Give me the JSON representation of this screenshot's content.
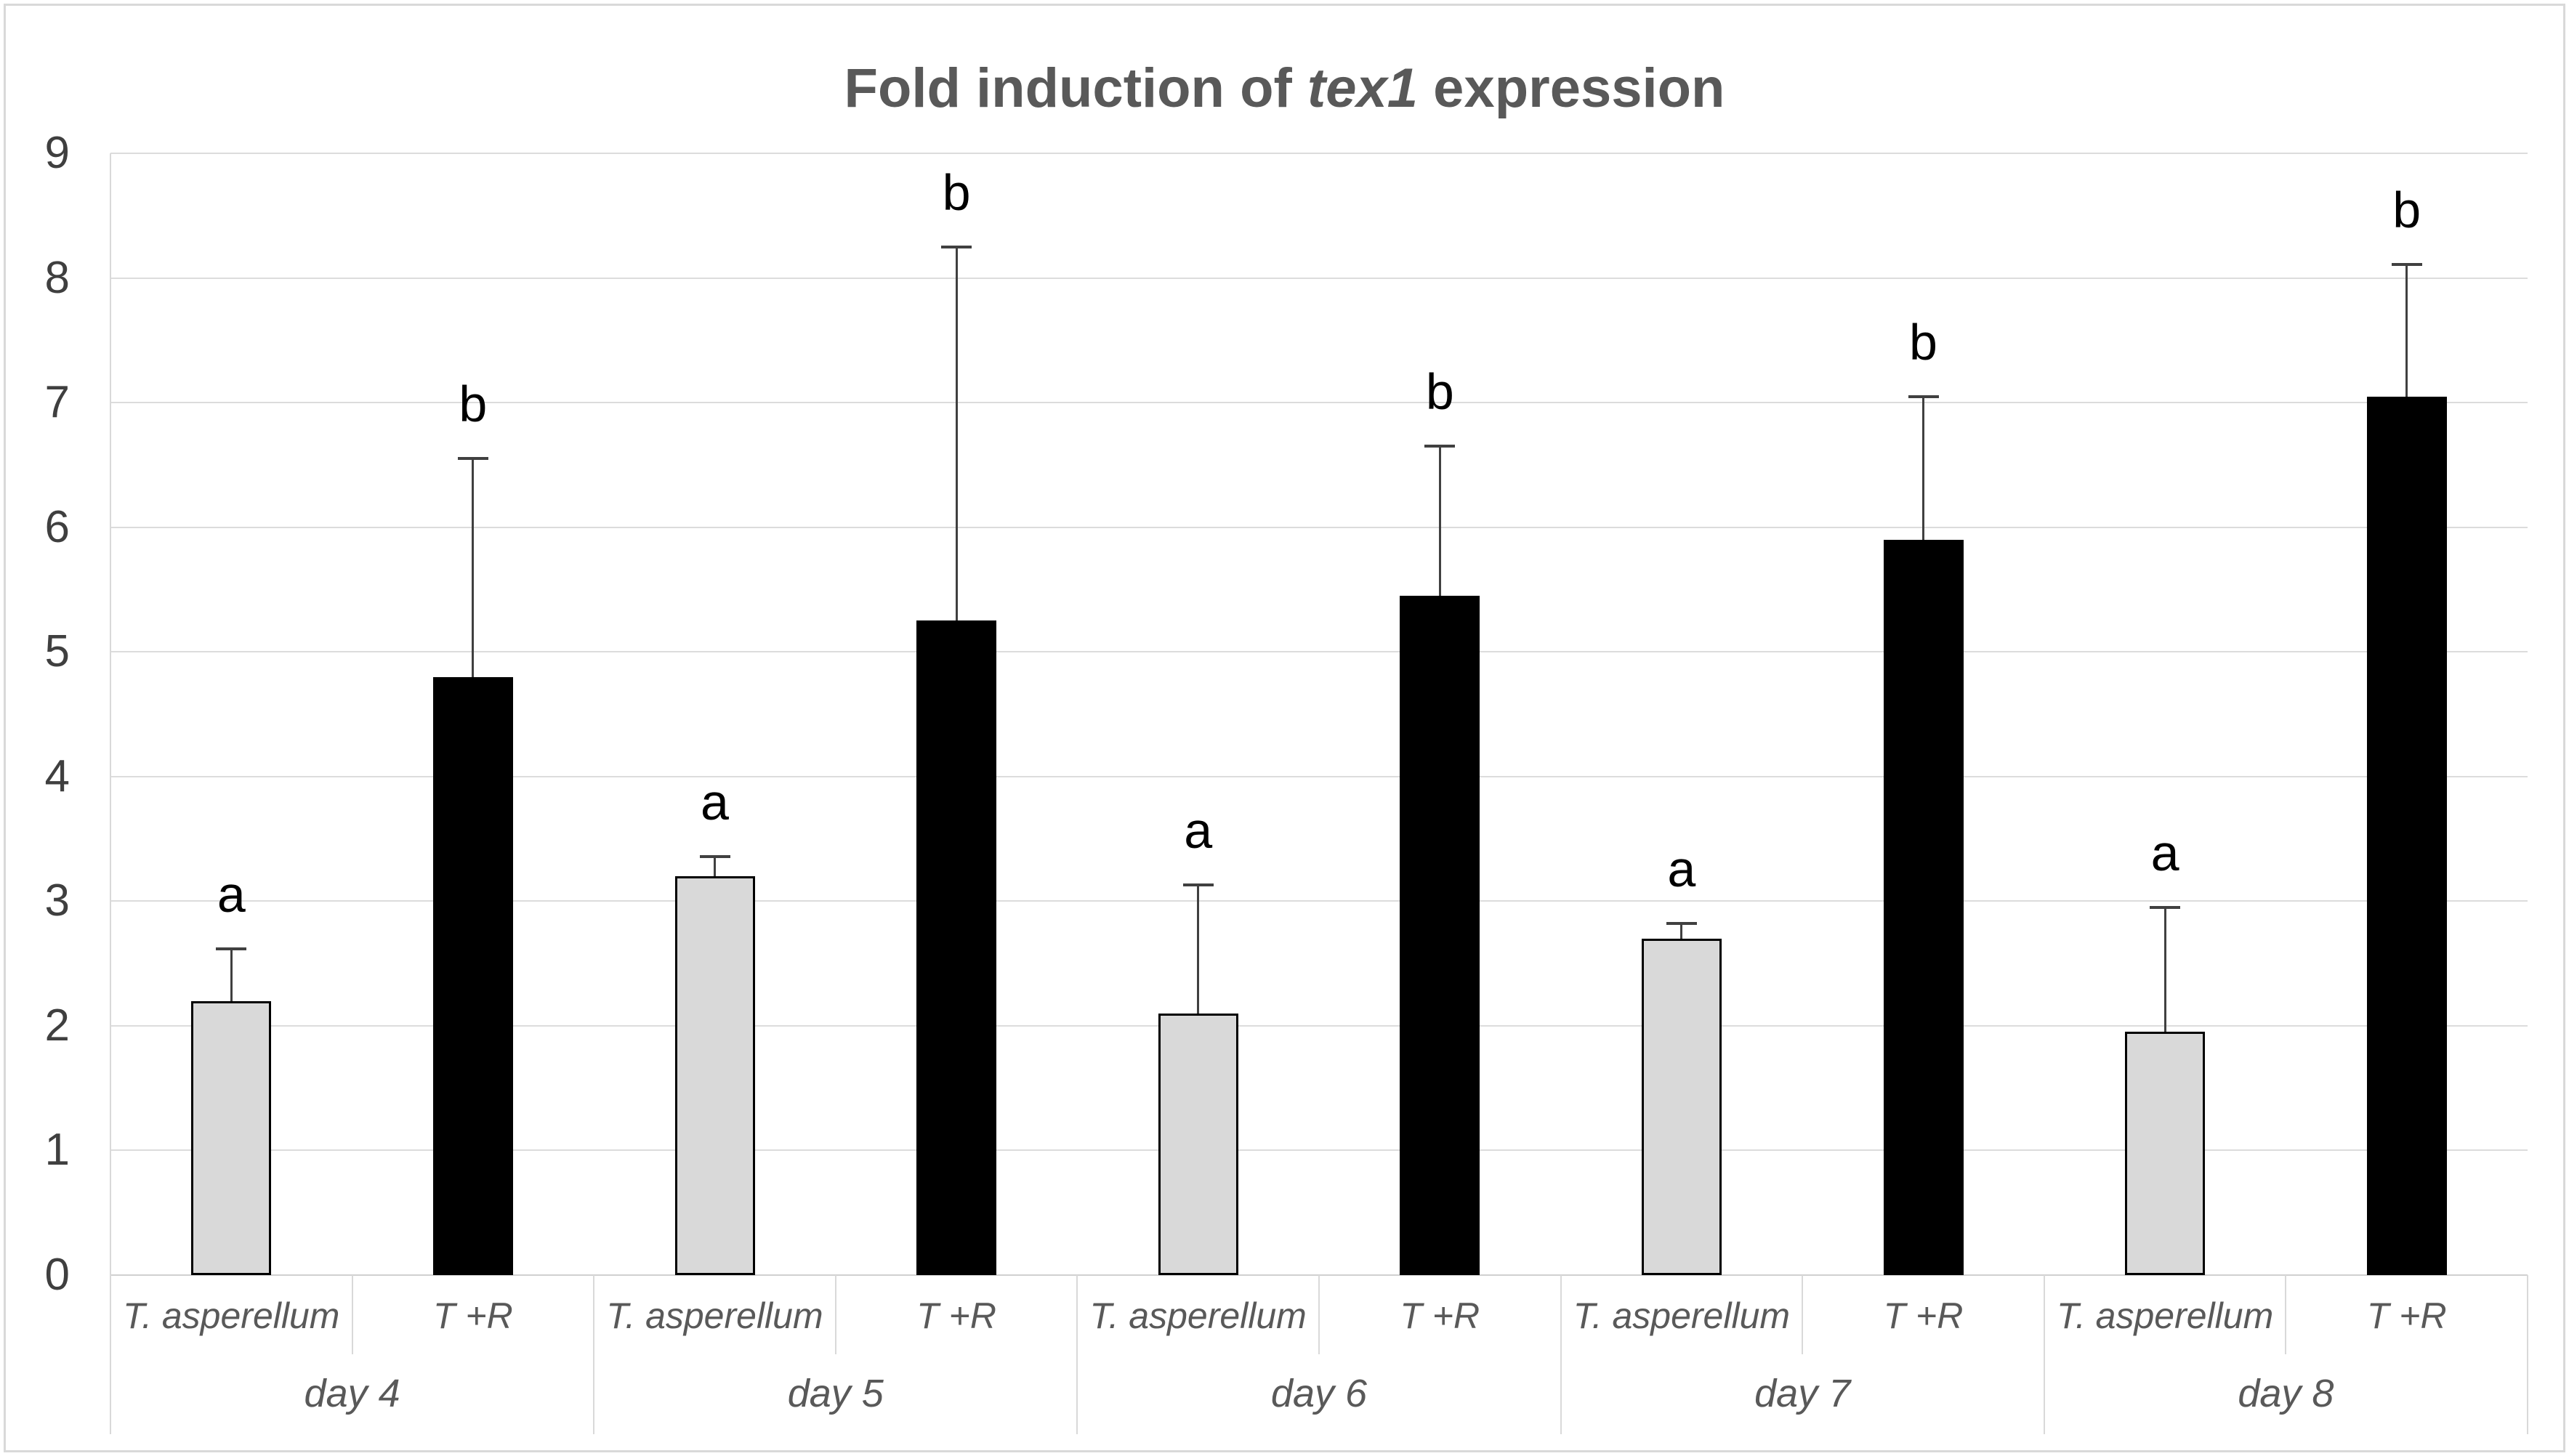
{
  "title": {
    "prefix": "Fold induction of ",
    "gene": "tex1",
    "suffix": " expression"
  },
  "y_axis": {
    "tick_labels": [
      "0",
      "1",
      "2",
      "3",
      "4",
      "5",
      "6",
      "7",
      "8",
      "9"
    ]
  },
  "colors": {
    "gray_bar_fill": "#d9d9d9",
    "black_bar_fill": "#000000",
    "bar_border": "#000000",
    "gridline": "#dcdcdc",
    "axis_line": "#d0d0d0",
    "separator_line": "#d9d9d9",
    "label_text": "#595959",
    "title_text": "#595959",
    "tick_text": "#3f3f3f",
    "error_bar": "#404040",
    "letter_text": "#000000"
  },
  "chart_data": {
    "type": "bar",
    "title": "Fold induction of tex1 expression",
    "groups": [
      "day 4",
      "day 5",
      "day 6",
      "day 7",
      "day 8"
    ],
    "categories_per_group": [
      "T. asperellum",
      "T +R"
    ],
    "series": [
      {
        "name": "T. asperellum",
        "fill": "#d9d9d9",
        "values": [
          2.2,
          3.2,
          2.1,
          2.7,
          1.95
        ],
        "error_up": [
          0.42,
          0.16,
          1.03,
          0.12,
          1.0
        ],
        "letters": [
          "a",
          "a",
          "a",
          "a",
          "a"
        ]
      },
      {
        "name": "T +R",
        "fill": "#000000",
        "values": [
          4.8,
          5.25,
          5.45,
          5.9,
          7.05
        ],
        "error_up": [
          1.75,
          3.0,
          1.2,
          1.15,
          1.06
        ],
        "letters": [
          "b",
          "b",
          "b",
          "b",
          "b"
        ]
      }
    ],
    "ylim": [
      0,
      9
    ],
    "grid": true,
    "legend": "none",
    "xlabel": "",
    "ylabel": ""
  }
}
